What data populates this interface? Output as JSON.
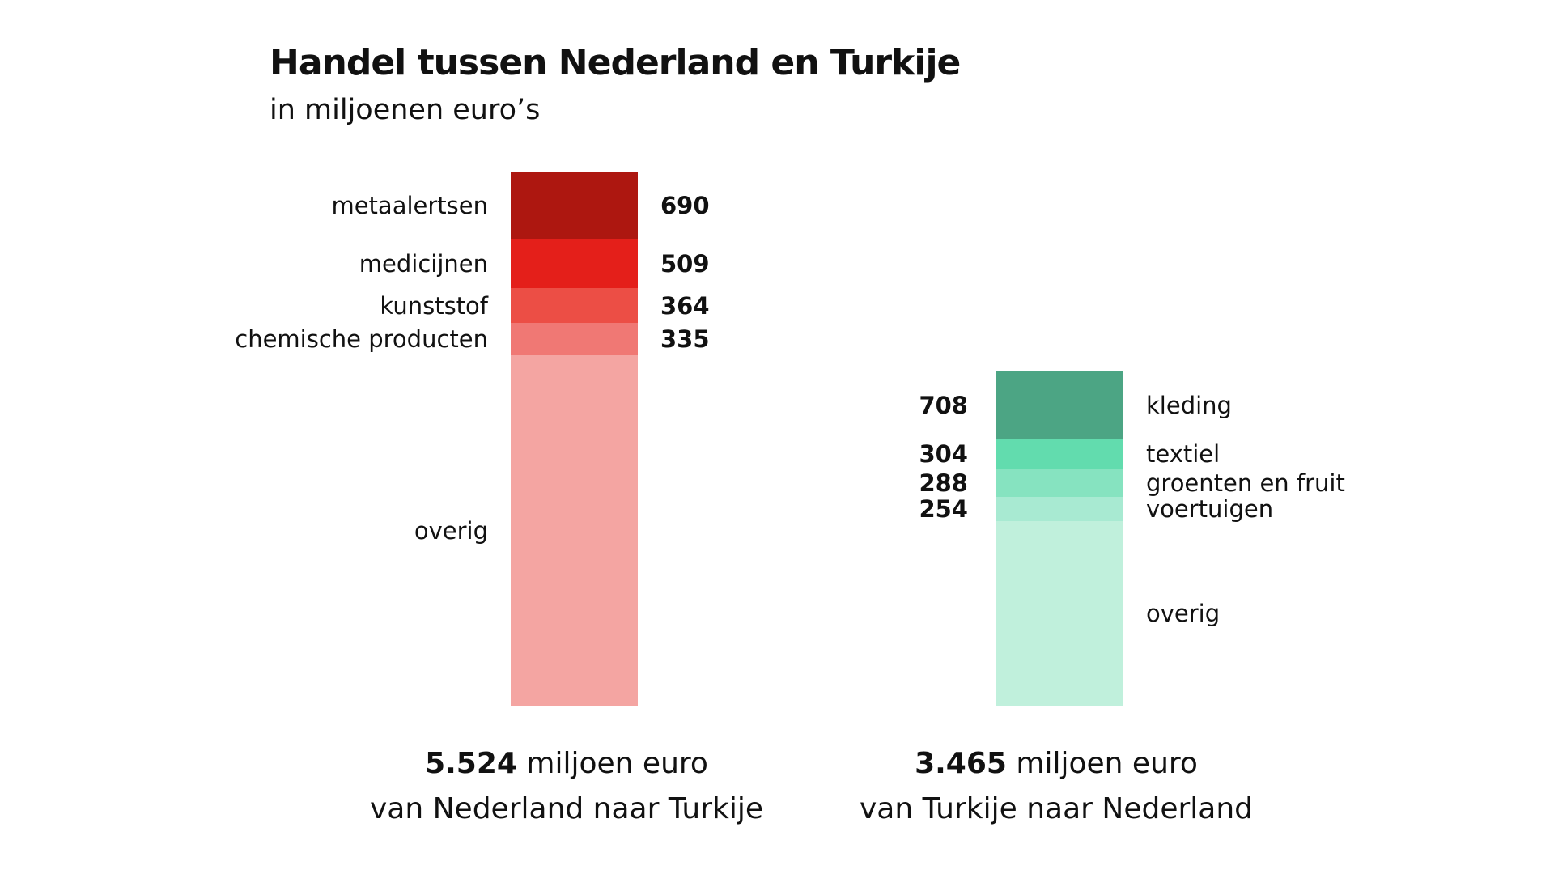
{
  "chart_data": {
    "type": "bar",
    "stacked": true,
    "title": "Handel tussen Nederland en Turkije",
    "subtitle": "in miljoenen euro’s",
    "unit_text": "miljoen euro",
    "series": [
      {
        "name": "van Nederland naar Turkije",
        "total_label": "5.524",
        "total": 5524,
        "side": "left",
        "segments": [
          {
            "label": "metaalertsen",
            "value": 690,
            "value_label": "690",
            "color": "#ad1710"
          },
          {
            "label": "medicijnen",
            "value": 509,
            "value_label": "509",
            "color": "#e41f1a"
          },
          {
            "label": "kunststof",
            "value": 364,
            "value_label": "364",
            "color": "#ec4e45"
          },
          {
            "label": "chemische producten",
            "value": 335,
            "value_label": "335",
            "color": "#f07874"
          },
          {
            "label": "overig",
            "value": 3626,
            "value_label": "",
            "color": "#f4a5a2"
          }
        ]
      },
      {
        "name": "van Turkije naar Nederland",
        "total_label": "3.465",
        "total": 3465,
        "side": "right",
        "segments": [
          {
            "label": "kleding",
            "value": 708,
            "value_label": "708",
            "color": "#4ca584"
          },
          {
            "label": "textiel",
            "value": 304,
            "value_label": "304",
            "color": "#62dcae"
          },
          {
            "label": "groenten en fruit",
            "value": 288,
            "value_label": "288",
            "color": "#86e3c0"
          },
          {
            "label": "voertuigen",
            "value": 254,
            "value_label": "254",
            "color": "#a8ead2"
          },
          {
            "label": "overig",
            "value": 1911,
            "value_label": "",
            "color": "#c0f0dc"
          }
        ]
      }
    ]
  }
}
